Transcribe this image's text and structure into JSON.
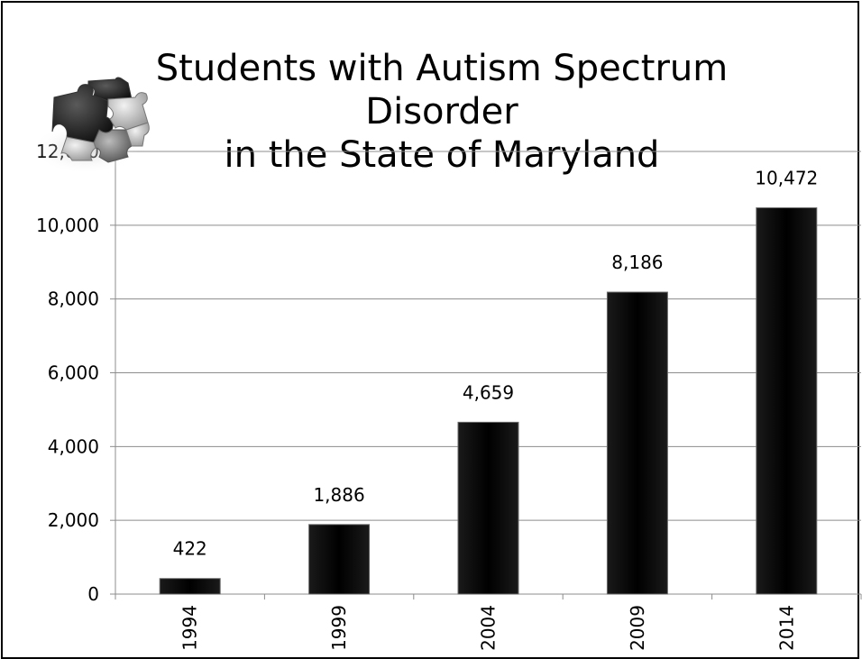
{
  "chart_data": {
    "type": "bar",
    "title_line1": "Students with Autism Spectrum Disorder",
    "title_line2": "in the State of Maryland",
    "categories": [
      "1994",
      "1999",
      "2004",
      "2009",
      "2014"
    ],
    "values": [
      422,
      1886,
      4659,
      8186,
      10472
    ],
    "data_labels": [
      "422",
      "1,886",
      "4,659",
      "8,186",
      "10,472"
    ],
    "ytick_labels": [
      "0",
      "2,000",
      "4,000",
      "6,000",
      "8,000",
      "10,000",
      "12,000"
    ],
    "ytick_values": [
      0,
      2000,
      4000,
      6000,
      8000,
      10000,
      12000
    ],
    "ylim": [
      0,
      12000
    ],
    "xlabel": "",
    "ylabel": "",
    "grid": true,
    "bar_color": "#000000",
    "decoration": "puzzle-pieces-icon"
  }
}
